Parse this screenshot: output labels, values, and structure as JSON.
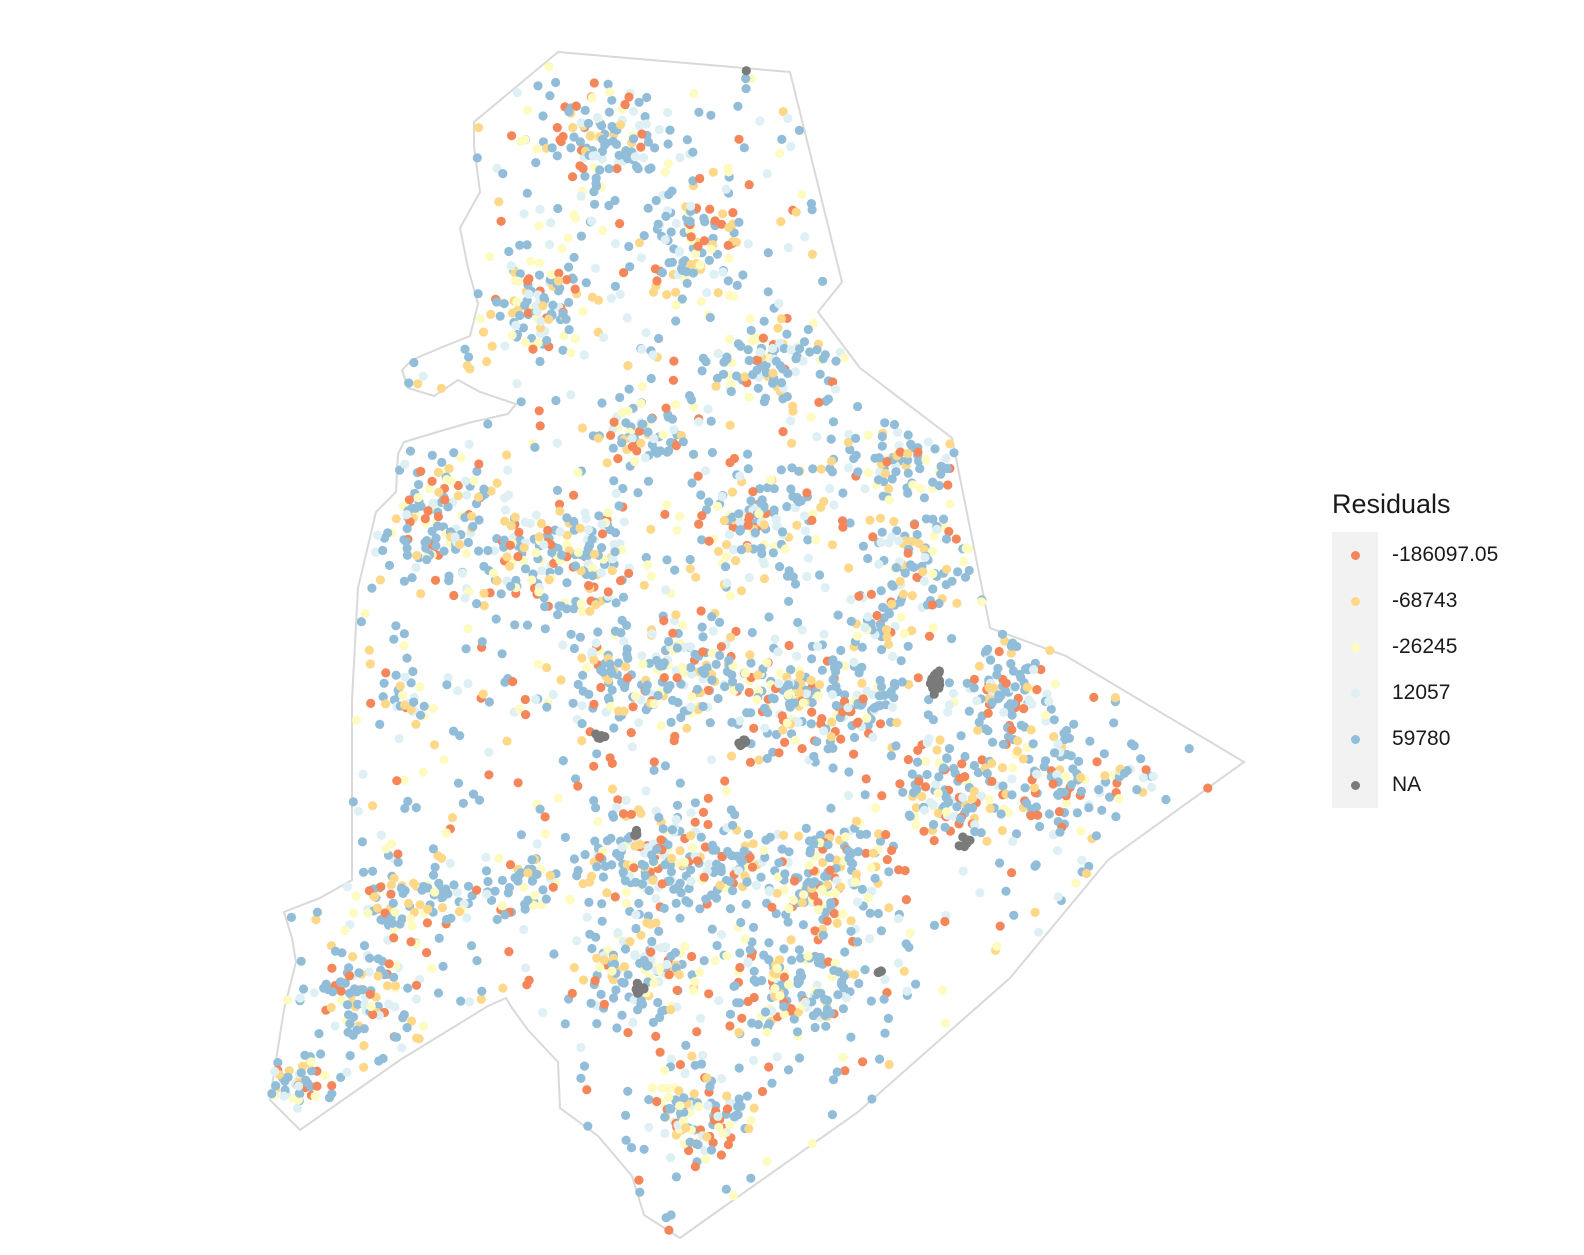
{
  "legend": {
    "title": "Residuals",
    "items": [
      {
        "label": "-186097.05",
        "color": "#f4865a"
      },
      {
        "label": "-68743",
        "color": "#fdd889"
      },
      {
        "label": "-26245",
        "color": "#fefbc0"
      },
      {
        "label": "12057",
        "color": "#def0f4"
      },
      {
        "label": "59780",
        "color": "#91bdd9"
      },
      {
        "label": "NA",
        "color": "#7a7a7a"
      }
    ]
  },
  "map": {
    "boundary_color": "#d9d9d9",
    "background": "#ffffff"
  }
}
